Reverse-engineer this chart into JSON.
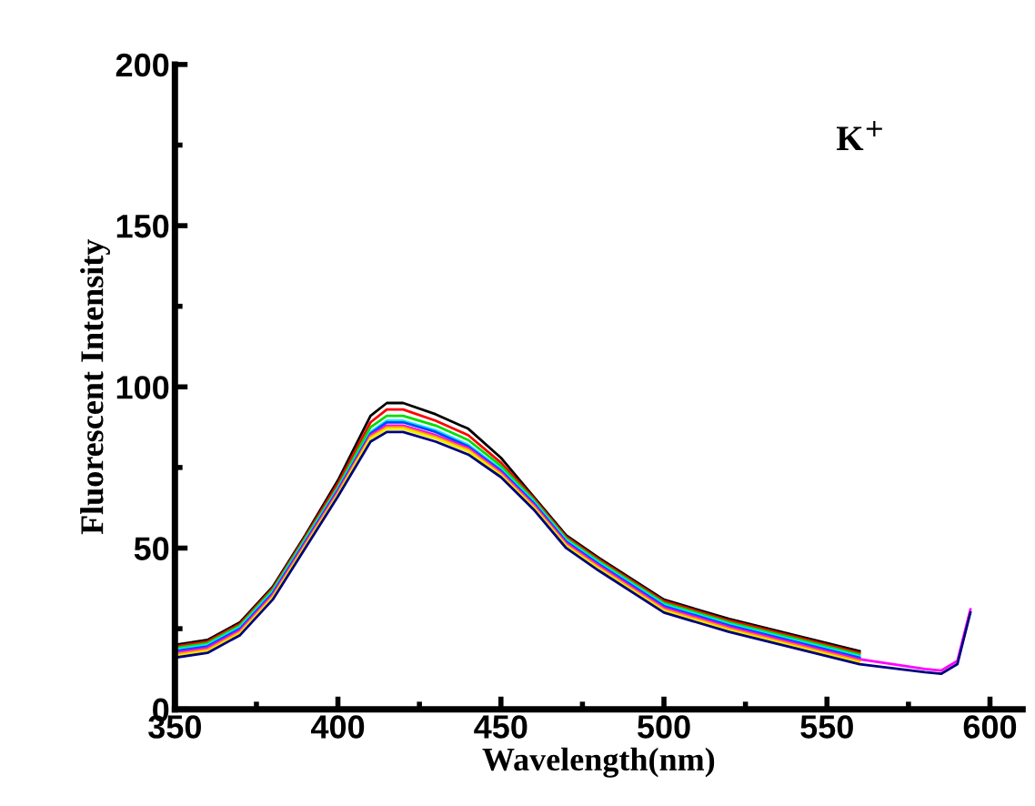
{
  "chart_data": {
    "type": "line",
    "xlabel": "Wavelength(nm)",
    "ylabel": "Fluorescent Intensity",
    "annotations": [
      "K$^{+}$"
    ],
    "x": [
      350,
      360,
      370,
      380,
      390,
      400,
      410,
      415,
      420,
      430,
      440,
      450,
      460,
      470,
      480,
      500,
      520,
      540,
      560,
      580,
      585,
      590,
      594
    ],
    "series": [
      {
        "color": "#000000",
        "values": [
          20,
          21.5,
          27,
          38,
          54,
          71,
          91,
          95,
          95,
          91.5,
          87,
          78,
          66,
          54,
          47,
          34,
          28,
          23,
          18,
          null,
          null,
          null,
          null
        ]
      },
      {
        "color": "#ff0000",
        "values": [
          19.5,
          21,
          26.5,
          37.5,
          53.5,
          70,
          89,
          93,
          93,
          89.5,
          85,
          76.5,
          65.5,
          53.5,
          46.5,
          33.5,
          27.5,
          22.5,
          17.5,
          null,
          null,
          null,
          null
        ]
      },
      {
        "color": "#00dd00",
        "values": [
          19,
          20.5,
          26,
          37,
          53,
          69,
          87.5,
          91,
          91,
          88,
          83.5,
          75.5,
          65,
          53,
          46,
          33,
          27,
          22,
          17,
          null,
          null,
          null,
          null
        ]
      },
      {
        "color": "#00e5ff",
        "values": [
          18.5,
          20,
          25.5,
          36.5,
          52.5,
          68.5,
          86,
          89.5,
          89.5,
          86.5,
          82,
          74.5,
          64.5,
          52.5,
          45.5,
          32.5,
          26.5,
          21.5,
          16.5,
          null,
          null,
          null,
          null
        ]
      },
      {
        "color": "#0044ff",
        "values": [
          18,
          19.5,
          25,
          36,
          52,
          68,
          85.5,
          89,
          89,
          86,
          81.5,
          74,
          64,
          52,
          45,
          32,
          26,
          21,
          16,
          null,
          null,
          null,
          null
        ]
      },
      {
        "color": "#ff00ff",
        "values": [
          17.5,
          19,
          24.5,
          35.5,
          51.5,
          67.5,
          85,
          88,
          88,
          85,
          81,
          73.5,
          63.5,
          51.5,
          44.5,
          31.5,
          25.5,
          20.5,
          15.5,
          12.5,
          12,
          15,
          31
        ]
      },
      {
        "color": "#ff9900",
        "values": [
          17,
          18.5,
          24,
          35,
          51,
          67,
          84.5,
          87.5,
          87.5,
          84.5,
          80.5,
          73,
          63,
          51,
          44,
          31,
          25,
          20,
          15,
          null,
          null,
          null,
          null
        ]
      },
      {
        "color": "#eeee00",
        "values": [
          16.5,
          18,
          23.5,
          34.5,
          50.5,
          66.5,
          84,
          87,
          87,
          84,
          80,
          72.5,
          62.5,
          50.5,
          43.5,
          30.5,
          24.5,
          19.5,
          14.5,
          null,
          null,
          null,
          null
        ]
      },
      {
        "color": "#000080",
        "values": [
          16,
          17.5,
          23,
          34,
          50,
          66,
          83,
          86,
          86,
          83,
          79,
          72,
          62,
          50,
          43,
          30,
          24,
          19,
          14,
          11.5,
          11,
          14,
          30
        ]
      }
    ],
    "xlim": [
      350,
      610
    ],
    "ylim": [
      0,
      200
    ],
    "xticks": [
      350,
      400,
      450,
      500,
      550,
      600
    ],
    "yticks": [
      0,
      50,
      100,
      150,
      200
    ]
  }
}
